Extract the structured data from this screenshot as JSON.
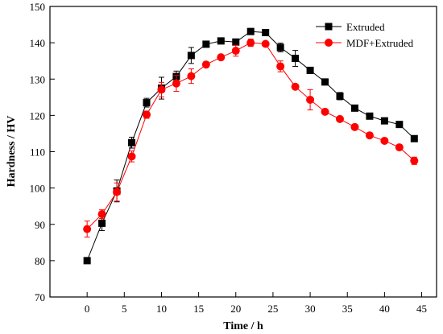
{
  "chart_data": {
    "type": "line",
    "xlabel": "Time / h",
    "ylabel": "Hardness / HV",
    "xlim": [
      -5,
      47
    ],
    "ylim": [
      70,
      150
    ],
    "xticks": [
      0,
      5,
      10,
      15,
      20,
      25,
      30,
      35,
      40,
      45
    ],
    "yticks": [
      70,
      80,
      90,
      100,
      110,
      120,
      130,
      140,
      150
    ],
    "grid": false,
    "legend_position": "top-right",
    "x": [
      0,
      2,
      4,
      6,
      8,
      10,
      12,
      14,
      16,
      18,
      20,
      22,
      24,
      26,
      28,
      30,
      32,
      34,
      36,
      38,
      40,
      42,
      44
    ],
    "series": [
      {
        "name": "Extruded",
        "color": "#000000",
        "marker": "square",
        "values": [
          80,
          90.3,
          99.2,
          112.5,
          123.5,
          127.5,
          130.7,
          136.5,
          139.6,
          140.5,
          140.2,
          143.1,
          142.8,
          138.7,
          135.7,
          132.4,
          129.2,
          125.3,
          122,
          119.8,
          118.5,
          117.5,
          113.6
        ],
        "errors": [
          0,
          2,
          3,
          1.5,
          1.2,
          3,
          1.5,
          2.2,
          0.8,
          0.5,
          0.8,
          0.5,
          0.8,
          1.2,
          2.2,
          0.5,
          0.5,
          1,
          0.5,
          0.5,
          0.5,
          0.5,
          0.5
        ]
      },
      {
        "name": "MDF+Extruded",
        "color": "#ff0000",
        "marker": "circle",
        "values": [
          88.7,
          92.8,
          98.9,
          108.7,
          120.2,
          127.1,
          128.8,
          130.8,
          134,
          136,
          137.8,
          140,
          139.7,
          133.5,
          127.9,
          124.3,
          121,
          119,
          116.8,
          114.5,
          113,
          111.2,
          107.5
        ],
        "errors": [
          2.2,
          1.2,
          2.5,
          1.5,
          1,
          2,
          2.2,
          2,
          0.5,
          0.5,
          1.5,
          1,
          0.5,
          1.5,
          0.5,
          2.8,
          0.5,
          0.5,
          0.5,
          0.5,
          0.5,
          0.5,
          1
        ]
      }
    ]
  }
}
